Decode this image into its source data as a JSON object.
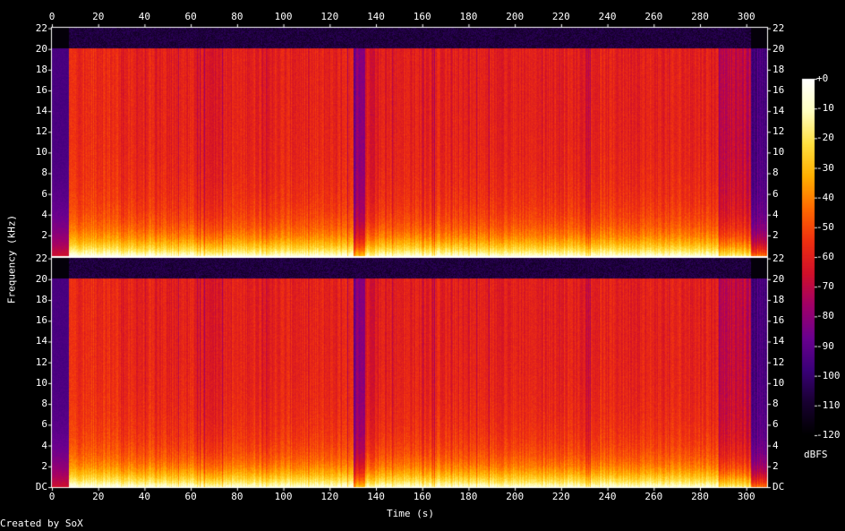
{
  "chart_data": {
    "type": "heatmap",
    "title": "",
    "xlabel": "Time (s)",
    "ylabel": "Frequency (kHz)",
    "colorbar_label": "dBFS",
    "credit": "Created by SoX",
    "x_ticks": [
      "0",
      "20",
      "40",
      "60",
      "80",
      "100",
      "120",
      "140",
      "160",
      "180",
      "200",
      "220",
      "240",
      "260",
      "280",
      "300"
    ],
    "y_ticks_upper": [
      "22",
      "20",
      "18",
      "16",
      "14",
      "12",
      "10",
      "8",
      "6",
      "4",
      "2"
    ],
    "y_ticks_lower": [
      "22",
      "20",
      "18",
      "16",
      "14",
      "12",
      "10",
      "8",
      "6",
      "4",
      "2",
      "DC"
    ],
    "colorbar_ticks": [
      "+0",
      "-10",
      "-20",
      "-30",
      "-40",
      "-50",
      "-60",
      "-70",
      "-80",
      "-90",
      "-100",
      "-110",
      "-120"
    ],
    "xlim": [
      0,
      309
    ],
    "ylim_khz": [
      0,
      22.05
    ],
    "zlim_dbfs": [
      -120,
      0
    ],
    "channels": 2,
    "cutoff_khz": 20.1,
    "segments": [
      {
        "start": 0,
        "end": 7,
        "level_dbfs": -88
      },
      {
        "start": 7,
        "end": 29,
        "level_dbfs": -57
      },
      {
        "start": 29,
        "end": 62,
        "level_dbfs": -60
      },
      {
        "start": 62,
        "end": 72,
        "level_dbfs": -62
      },
      {
        "start": 72,
        "end": 130,
        "level_dbfs": -60
      },
      {
        "start": 130,
        "end": 135,
        "level_dbfs": -82
      },
      {
        "start": 135,
        "end": 140,
        "level_dbfs": -63
      },
      {
        "start": 140,
        "end": 288,
        "level_dbfs": -60
      },
      {
        "start": 288,
        "end": 302,
        "level_dbfs": -70
      },
      {
        "start": 302,
        "end": 309,
        "level_dbfs": -95
      }
    ],
    "colormap": [
      "#000000",
      "#180030",
      "#3a0078",
      "#6a0090",
      "#a0006a",
      "#d0102a",
      "#f03010",
      "#ff6a00",
      "#ffb000",
      "#ffe040",
      "#ffffc0",
      "#ffffff"
    ]
  }
}
